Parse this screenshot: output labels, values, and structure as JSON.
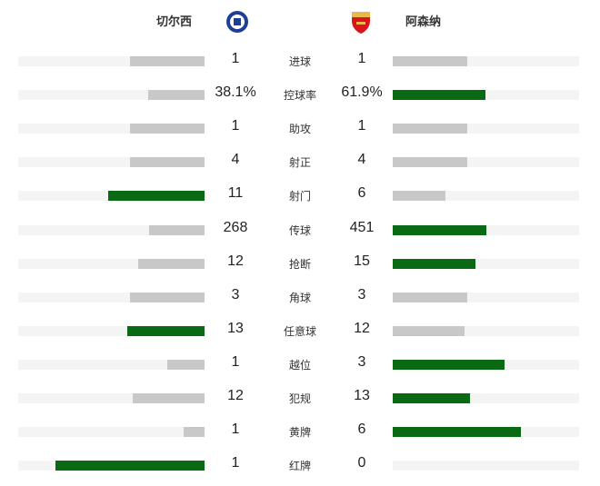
{
  "home": {
    "name": "切尔西",
    "logo": "chelsea-crest",
    "color": "#1d3f96"
  },
  "away": {
    "name": "阿森纳",
    "logo": "arsenal-crest",
    "color": "#d9151b"
  },
  "colors": {
    "win": "#0a6a14",
    "neutral": "#c8c8c8",
    "track": "#f4f4f4"
  },
  "stats": [
    {
      "label": "进球",
      "home": "1",
      "away": "1",
      "h": 1,
      "a": 1
    },
    {
      "label": "控球率",
      "home": "38.1%",
      "away": "61.9%",
      "h": 38.1,
      "a": 61.9
    },
    {
      "label": "助攻",
      "home": "1",
      "away": "1",
      "h": 1,
      "a": 1
    },
    {
      "label": "射正",
      "home": "4",
      "away": "4",
      "h": 4,
      "a": 4
    },
    {
      "label": "射门",
      "home": "11",
      "away": "6",
      "h": 11,
      "a": 6
    },
    {
      "label": "传球",
      "home": "268",
      "away": "451",
      "h": 268,
      "a": 451
    },
    {
      "label": "抢断",
      "home": "12",
      "away": "15",
      "h": 12,
      "a": 15
    },
    {
      "label": "角球",
      "home": "3",
      "away": "3",
      "h": 3,
      "a": 3
    },
    {
      "label": "任意球",
      "home": "13",
      "away": "12",
      "h": 13,
      "a": 12
    },
    {
      "label": "越位",
      "home": "1",
      "away": "3",
      "h": 1,
      "a": 3
    },
    {
      "label": "犯规",
      "home": "12",
      "away": "13",
      "h": 12,
      "a": 13
    },
    {
      "label": "黄牌",
      "home": "1",
      "away": "6",
      "h": 1,
      "a": 6
    },
    {
      "label": "红牌",
      "home": "1",
      "away": "0",
      "h": 1,
      "a": 0
    }
  ]
}
